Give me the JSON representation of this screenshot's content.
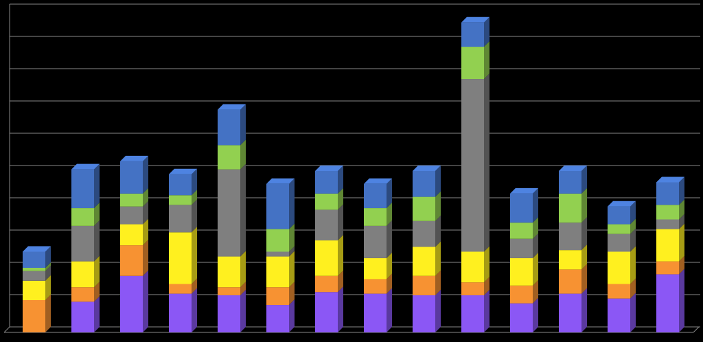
{
  "chart_data": {
    "type": "bar3d_stacked",
    "categories": [
      null,
      null,
      null,
      null,
      null,
      null,
      null,
      null,
      null,
      null,
      null,
      null,
      null,
      null
    ],
    "series": [
      {
        "color": "#8b57f5",
        "values": [
          0,
          0.95,
          1.75,
          1.2,
          1.15,
          0.85,
          1.25,
          1.2,
          1.15,
          1.15,
          0.9,
          1.2,
          1.05,
          1.8
        ]
      },
      {
        "color": "#f79232",
        "values": [
          1.0,
          0.45,
          0.95,
          0.3,
          0.25,
          0.55,
          0.5,
          0.45,
          0.6,
          0.4,
          0.55,
          0.75,
          0.45,
          0.4
        ]
      },
      {
        "color": "#fff01f",
        "values": [
          0.6,
          0.8,
          0.65,
          1.6,
          0.95,
          0.95,
          1.1,
          0.65,
          0.9,
          0.95,
          0.85,
          0.6,
          1.0,
          1.0
        ]
      },
      {
        "color": "#7f7f7f",
        "values": [
          0.3,
          1.1,
          0.55,
          0.85,
          2.7,
          0.15,
          0.95,
          1.0,
          0.8,
          5.35,
          0.6,
          0.85,
          0.55,
          0.3
        ]
      },
      {
        "color": "#92d050",
        "values": [
          0.1,
          0.55,
          0.4,
          0.3,
          0.75,
          0.7,
          0.5,
          0.55,
          0.75,
          1.0,
          0.5,
          0.9,
          0.3,
          0.45
        ]
      },
      {
        "color": "#4472c4",
        "values": [
          0.5,
          1.2,
          1.0,
          0.65,
          1.1,
          1.4,
          0.7,
          0.75,
          0.8,
          0.75,
          0.9,
          0.7,
          0.55,
          0.7
        ]
      }
    ],
    "ylim": [
      0,
      10
    ],
    "yticks": [
      0,
      1,
      2,
      3,
      4,
      5,
      6,
      7,
      8,
      9,
      10
    ],
    "grid": true
  }
}
